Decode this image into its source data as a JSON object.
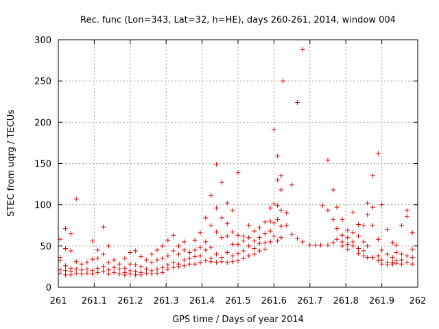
{
  "chart_data": {
    "type": "scatter",
    "title": "Rec. func (Lon=343, Lat=32, h=HE), days 260-261, 2014, window 004",
    "xlabel": "GPS time / Days of year 2014",
    "ylabel": "STEC from uqrg / TECUs",
    "xlim": [
      261,
      262
    ],
    "ylim": [
      0,
      300
    ],
    "xticks": [
      261,
      261.1,
      261.2,
      261.3,
      261.4,
      261.5,
      261.6,
      261.7,
      261.8,
      261.9,
      262
    ],
    "xtick_labels": [
      "261",
      "261.1",
      "261.2",
      "261.3",
      "261.4",
      "261.5",
      "261.6",
      "261.7",
      "261.8",
      "261.9",
      "262"
    ],
    "yticks": [
      0,
      50,
      100,
      150,
      200,
      250,
      300
    ],
    "ytick_labels": [
      "0",
      "50",
      "100",
      "150",
      "200",
      "250",
      "300"
    ],
    "grid": true,
    "marker": "+",
    "color": "#e00000",
    "series": [
      {
        "name": "STEC",
        "points": [
          [
            261.005,
            58
          ],
          [
            261.005,
            36
          ],
          [
            261.005,
            32
          ],
          [
            261.005,
            21
          ],
          [
            261.005,
            17
          ],
          [
            261.02,
            71
          ],
          [
            261.02,
            47
          ],
          [
            261.02,
            26
          ],
          [
            261.02,
            20
          ],
          [
            261.02,
            15
          ],
          [
            261.035,
            65
          ],
          [
            261.035,
            44
          ],
          [
            261.035,
            23
          ],
          [
            261.035,
            19
          ],
          [
            261.035,
            15
          ],
          [
            261.05,
            107
          ],
          [
            261.05,
            31
          ],
          [
            261.05,
            22
          ],
          [
            261.05,
            17
          ],
          [
            261.065,
            28
          ],
          [
            261.065,
            21
          ],
          [
            261.065,
            16
          ],
          [
            261.08,
            30
          ],
          [
            261.08,
            22
          ],
          [
            261.08,
            17
          ],
          [
            261.095,
            56
          ],
          [
            261.095,
            34
          ],
          [
            261.095,
            20
          ],
          [
            261.095,
            16
          ],
          [
            261.11,
            45
          ],
          [
            261.11,
            35
          ],
          [
            261.11,
            23
          ],
          [
            261.11,
            18
          ],
          [
            261.125,
            73
          ],
          [
            261.125,
            40
          ],
          [
            261.125,
            25
          ],
          [
            261.125,
            19
          ],
          [
            261.14,
            50
          ],
          [
            261.14,
            30
          ],
          [
            261.14,
            21
          ],
          [
            261.14,
            16
          ],
          [
            261.155,
            33
          ],
          [
            261.155,
            24
          ],
          [
            261.155,
            18
          ],
          [
            261.17,
            28
          ],
          [
            261.17,
            22
          ],
          [
            261.17,
            16
          ],
          [
            261.185,
            35
          ],
          [
            261.185,
            23
          ],
          [
            261.185,
            18
          ],
          [
            261.185,
            15
          ],
          [
            261.2,
            42
          ],
          [
            261.2,
            28
          ],
          [
            261.2,
            20
          ],
          [
            261.2,
            16
          ],
          [
            261.215,
            44
          ],
          [
            261.215,
            27
          ],
          [
            261.215,
            19
          ],
          [
            261.215,
            15
          ],
          [
            261.23,
            37
          ],
          [
            261.23,
            25
          ],
          [
            261.23,
            18
          ],
          [
            261.23,
            15
          ],
          [
            261.245,
            33
          ],
          [
            261.245,
            22
          ],
          [
            261.245,
            17
          ],
          [
            261.26,
            40
          ],
          [
            261.26,
            30
          ],
          [
            261.26,
            20
          ],
          [
            261.26,
            16
          ],
          [
            261.275,
            45
          ],
          [
            261.275,
            33
          ],
          [
            261.275,
            22
          ],
          [
            261.275,
            17
          ],
          [
            261.29,
            50
          ],
          [
            261.29,
            35
          ],
          [
            261.29,
            24
          ],
          [
            261.29,
            18
          ],
          [
            261.305,
            57
          ],
          [
            261.305,
            38
          ],
          [
            261.305,
            27
          ],
          [
            261.305,
            22
          ],
          [
            261.32,
            63
          ],
          [
            261.32,
            44
          ],
          [
            261.32,
            30
          ],
          [
            261.32,
            24
          ],
          [
            261.335,
            50
          ],
          [
            261.335,
            40
          ],
          [
            261.335,
            28
          ],
          [
            261.335,
            25
          ],
          [
            261.35,
            55
          ],
          [
            261.35,
            45
          ],
          [
            261.35,
            33
          ],
          [
            261.35,
            26
          ],
          [
            261.365,
            42
          ],
          [
            261.365,
            35
          ],
          [
            261.365,
            28
          ],
          [
            261.38,
            57
          ],
          [
            261.38,
            45
          ],
          [
            261.38,
            37
          ],
          [
            261.38,
            28
          ],
          [
            261.395,
            66
          ],
          [
            261.395,
            48
          ],
          [
            261.395,
            38
          ],
          [
            261.395,
            30
          ],
          [
            261.41,
            84
          ],
          [
            261.41,
            55
          ],
          [
            261.41,
            45
          ],
          [
            261.41,
            32
          ],
          [
            261.425,
            111
          ],
          [
            261.425,
            75
          ],
          [
            261.425,
            48
          ],
          [
            261.425,
            35
          ],
          [
            261.425,
            31
          ],
          [
            261.44,
            149
          ],
          [
            261.44,
            96
          ],
          [
            261.44,
            67
          ],
          [
            261.44,
            40
          ],
          [
            261.44,
            30
          ],
          [
            261.455,
            127
          ],
          [
            261.455,
            84
          ],
          [
            261.455,
            60
          ],
          [
            261.455,
            36
          ],
          [
            261.455,
            31
          ],
          [
            261.47,
            102
          ],
          [
            261.47,
            77
          ],
          [
            261.47,
            62
          ],
          [
            261.47,
            42
          ],
          [
            261.47,
            30
          ],
          [
            261.485,
            93
          ],
          [
            261.485,
            67
          ],
          [
            261.485,
            52
          ],
          [
            261.485,
            38
          ],
          [
            261.485,
            31
          ],
          [
            261.5,
            139
          ],
          [
            261.5,
            63
          ],
          [
            261.5,
            52
          ],
          [
            261.5,
            41
          ],
          [
            261.5,
            32
          ],
          [
            261.515,
            62
          ],
          [
            261.515,
            56
          ],
          [
            261.515,
            44
          ],
          [
            261.515,
            35
          ],
          [
            261.53,
            75
          ],
          [
            261.53,
            60
          ],
          [
            261.53,
            50
          ],
          [
            261.53,
            38
          ],
          [
            261.545,
            68
          ],
          [
            261.545,
            56
          ],
          [
            261.545,
            47
          ],
          [
            261.545,
            40
          ],
          [
            261.56,
            72
          ],
          [
            261.56,
            60
          ],
          [
            261.56,
            53
          ],
          [
            261.56,
            44
          ],
          [
            261.575,
            79
          ],
          [
            261.575,
            65
          ],
          [
            261.575,
            54
          ],
          [
            261.575,
            46
          ],
          [
            261.59,
            96
          ],
          [
            261.59,
            80
          ],
          [
            261.59,
            68
          ],
          [
            261.59,
            55
          ],
          [
            261.6,
            191
          ],
          [
            261.6,
            101
          ],
          [
            261.6,
            78
          ],
          [
            261.6,
            62
          ],
          [
            261.61,
            159
          ],
          [
            261.61,
            130
          ],
          [
            261.61,
            99
          ],
          [
            261.61,
            82
          ],
          [
            261.61,
            56
          ],
          [
            261.62,
            135
          ],
          [
            261.62,
            118
          ],
          [
            261.62,
            93
          ],
          [
            261.62,
            74
          ],
          [
            261.62,
            60
          ],
          [
            261.625,
            250
          ],
          [
            261.635,
            90
          ],
          [
            261.635,
            75
          ],
          [
            261.65,
            124
          ],
          [
            261.65,
            64
          ],
          [
            261.665,
            224
          ],
          [
            261.665,
            59
          ],
          [
            261.68,
            288
          ],
          [
            261.68,
            55
          ],
          [
            261.7,
            51
          ],
          [
            261.715,
            51
          ],
          [
            261.73,
            51
          ],
          [
            261.735,
            99
          ],
          [
            261.75,
            154
          ],
          [
            261.75,
            93
          ],
          [
            261.75,
            51
          ],
          [
            261.765,
            118
          ],
          [
            261.765,
            82
          ],
          [
            261.765,
            54
          ],
          [
            261.775,
            97
          ],
          [
            261.775,
            71
          ],
          [
            261.775,
            58
          ],
          [
            261.79,
            82
          ],
          [
            261.79,
            63
          ],
          [
            261.79,
            55
          ],
          [
            261.79,
            50
          ],
          [
            261.805,
            69
          ],
          [
            261.805,
            60
          ],
          [
            261.805,
            52
          ],
          [
            261.805,
            46
          ],
          [
            261.82,
            91
          ],
          [
            261.82,
            66
          ],
          [
            261.82,
            55
          ],
          [
            261.82,
            50
          ],
          [
            261.835,
            76
          ],
          [
            261.835,
            62
          ],
          [
            261.835,
            47
          ],
          [
            261.835,
            41
          ],
          [
            261.85,
            75
          ],
          [
            261.85,
            55
          ],
          [
            261.85,
            44
          ],
          [
            261.85,
            38
          ],
          [
            261.86,
            102
          ],
          [
            261.86,
            88
          ],
          [
            261.86,
            50
          ],
          [
            261.86,
            36
          ],
          [
            261.875,
            135
          ],
          [
            261.875,
            97
          ],
          [
            261.875,
            75
          ],
          [
            261.875,
            36
          ],
          [
            261.89,
            162
          ],
          [
            261.89,
            58
          ],
          [
            261.89,
            38
          ],
          [
            261.89,
            32
          ],
          [
            261.9,
            100
          ],
          [
            261.9,
            45
          ],
          [
            261.9,
            33
          ],
          [
            261.9,
            28
          ],
          [
            261.915,
            70
          ],
          [
            261.915,
            40
          ],
          [
            261.915,
            30
          ],
          [
            261.915,
            27
          ],
          [
            261.93,
            54
          ],
          [
            261.93,
            36
          ],
          [
            261.93,
            30
          ],
          [
            261.93,
            28
          ],
          [
            261.94,
            51
          ],
          [
            261.94,
            42
          ],
          [
            261.94,
            32
          ],
          [
            261.94,
            29
          ],
          [
            261.955,
            75
          ],
          [
            261.955,
            40
          ],
          [
            261.955,
            33
          ],
          [
            261.955,
            28
          ],
          [
            261.97,
            93
          ],
          [
            261.97,
            86
          ],
          [
            261.97,
            38
          ],
          [
            261.97,
            30
          ],
          [
            261.985,
            66
          ],
          [
            261.985,
            46
          ],
          [
            261.985,
            36
          ],
          [
            261.985,
            28
          ]
        ]
      }
    ]
  }
}
